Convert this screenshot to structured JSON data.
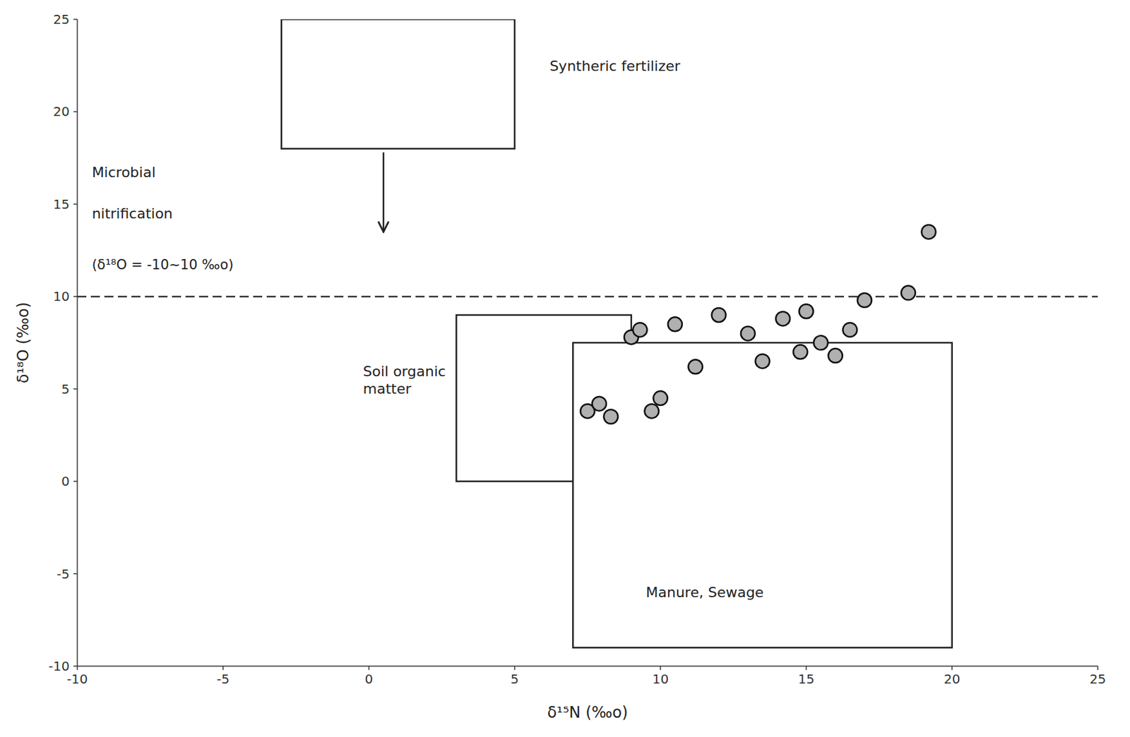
{
  "chart_data": {
    "type": "scatter",
    "xlabel": "δ¹⁵N (‰o)",
    "ylabel": "δ¹⁸O (‰o)",
    "xlim": [
      -10,
      25
    ],
    "ylim": [
      -10,
      25
    ],
    "xticks": [
      -10,
      -5,
      0,
      5,
      10,
      15,
      20,
      25
    ],
    "yticks": [
      -10,
      -5,
      0,
      5,
      10,
      15,
      20,
      25
    ],
    "color": "#b0b0b0",
    "x": [
      7.5,
      7.9,
      8.3,
      9.0,
      9.3,
      9.7,
      10.0,
      10.5,
      11.2,
      12.0,
      13.0,
      13.5,
      14.2,
      14.8,
      15.0,
      15.5,
      16.0,
      16.5,
      17.0,
      18.5,
      19.2
    ],
    "values": [
      3.8,
      4.2,
      3.5,
      7.8,
      8.2,
      3.8,
      4.5,
      8.5,
      6.2,
      9.0,
      8.0,
      6.5,
      8.8,
      7.0,
      9.2,
      7.5,
      6.8,
      8.2,
      9.8,
      10.2,
      13.5
    ],
    "regions": [
      {
        "label": "Syntheric fertilizer",
        "x": -3,
        "y": 18,
        "w": 8,
        "h": 7,
        "label_x": 6.2,
        "label_y": 22.5
      },
      {
        "label": "Soil organic\nmatter",
        "x": 3,
        "y": 0,
        "w": 6,
        "h": 9,
        "label_x": -0.2,
        "label_y": 5.5
      },
      {
        "label": "Manure, Sewage",
        "x": 7,
        "y": -9,
        "w": 13,
        "h": 16.5,
        "label_x": 9.5,
        "label_y": -6.0
      }
    ],
    "hlines": [
      10
    ],
    "arrow": {
      "x": 0.5,
      "y_start": 17.8,
      "y_end": 13.5
    },
    "annotations": [
      {
        "text": "Microbial",
        "x": -9.5,
        "y": 17.0
      },
      {
        "text": "nitrification",
        "x": -9.5,
        "y": 14.8
      },
      {
        "text": "(δ¹⁸O = -10~10 ‰o)",
        "x": -9.5,
        "y": 12.0
      }
    ]
  }
}
